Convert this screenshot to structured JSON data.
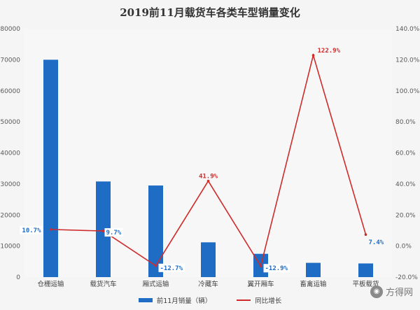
{
  "title": "2019前11月载货车各类车型销量变化",
  "watermark": {
    "text": "方得网",
    "icon": "wechat-icon"
  },
  "legend": {
    "bar_label": "前11月销量（辆）",
    "line_label": "同比增长"
  },
  "colors": {
    "bar": "#1f6cc4",
    "line": "#d02b2b",
    "label_blue": "#1f6cc4",
    "label_red": "#d02b2b"
  },
  "chart_data": {
    "type": "bar",
    "title": "2019前11月载货车各类车型销量变化",
    "categories": [
      "仓栅运输",
      "载货汽车",
      "厢式运输",
      "冷藏车",
      "翼开厢车",
      "畜禽运输",
      "平板载货"
    ],
    "series": [
      {
        "name": "前11月销量（辆）",
        "type": "bar",
        "axis": "left",
        "values": [
          70000,
          30800,
          29500,
          11200,
          7500,
          4600,
          4400
        ]
      },
      {
        "name": "同比增长",
        "type": "line",
        "axis": "right",
        "values": [
          10.7,
          9.7,
          -12.7,
          41.9,
          -12.9,
          122.9,
          7.4
        ]
      }
    ],
    "line_labels": [
      "10.7%",
      "9.7%",
      "-12.7%",
      "41.9%",
      "-12.9%",
      "122.9%",
      "7.4%"
    ],
    "y_left": {
      "min": 0,
      "max": 80000,
      "step": 10000,
      "ticks": [
        "0",
        "10000",
        "20000",
        "30000",
        "40000",
        "50000",
        "60000",
        "70000",
        "80000"
      ]
    },
    "y_right": {
      "min": -20,
      "max": 140,
      "step": 20,
      "ticks": [
        "-20.0%",
        "0.0%",
        "20.0%",
        "40.0%",
        "60.0%",
        "80.0%",
        "100.0%",
        "120.0%",
        "140.0%"
      ]
    },
    "grid": false,
    "legend_position": "bottom"
  }
}
